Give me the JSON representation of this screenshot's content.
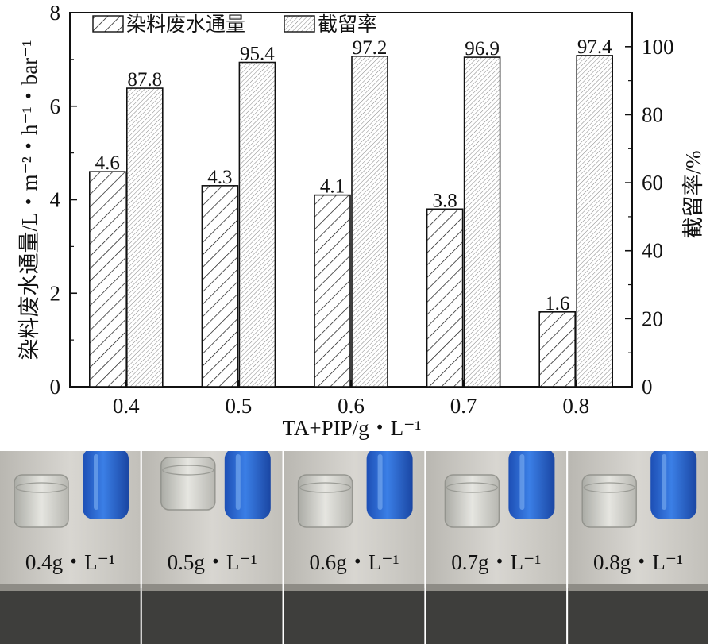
{
  "chart_data": {
    "type": "bar",
    "categories": [
      "0.4",
      "0.5",
      "0.6",
      "0.7",
      "0.8"
    ],
    "series": [
      {
        "name": "染料废水通量",
        "axis": "left",
        "pattern": "coarse-diagonal-hatch",
        "values": [
          4.6,
          4.3,
          4.1,
          3.8,
          1.6
        ],
        "labels": [
          "4.6",
          "4.3",
          "4.1",
          "3.8",
          "1.6"
        ]
      },
      {
        "name": "截留率",
        "axis": "right",
        "pattern": "fine-diagonal-hatch",
        "values": [
          87.8,
          95.4,
          97.2,
          96.9,
          97.4
        ],
        "labels": [
          "87.8",
          "95.4",
          "97.2",
          "96.9",
          "97.4"
        ]
      }
    ],
    "xlabel": "TA+PIP/g・L⁻¹",
    "ylabel_left": "染料废水通量/L・m⁻²・h⁻¹・bar⁻¹",
    "ylabel_right": "截留率/%",
    "ylim_left": [
      0,
      8
    ],
    "ylim_right": [
      0,
      110
    ],
    "yticks_left": [
      "0",
      "2",
      "4",
      "6",
      "8"
    ],
    "yticks_right": [
      "0",
      "20",
      "40",
      "60",
      "80",
      "100"
    ],
    "grid": false,
    "legend": "top-left, horizontal"
  },
  "photos": [
    {
      "label": "0.4g・L⁻¹",
      "liquid": "blue"
    },
    {
      "label": "0.5g・L⁻¹",
      "liquid": "blue"
    },
    {
      "label": "0.6g・L⁻¹",
      "liquid": "blue"
    },
    {
      "label": "0.7g・L⁻¹",
      "liquid": "blue"
    },
    {
      "label": "0.8g・L⁻¹",
      "liquid": "blue"
    }
  ],
  "colors": {
    "ink": "#111111",
    "dye_blue": "#2f6fd6",
    "background": "#ffffff"
  }
}
